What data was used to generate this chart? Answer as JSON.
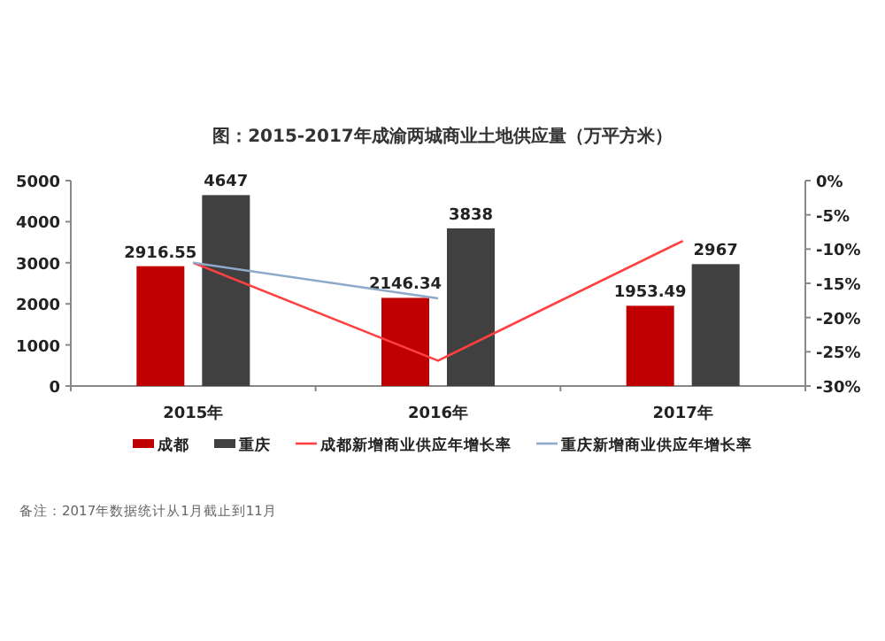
{
  "chart_data": {
    "type": "bar",
    "title": "图：2015-2017年成渝两城商业土地供应量（万平方米）",
    "categories": [
      "2015年",
      "2016年",
      "2017年"
    ],
    "series": [
      {
        "name": "成都",
        "color": "#c00000",
        "values": [
          2916.55,
          2146.34,
          1953.49
        ],
        "value_labels": [
          "2916.55",
          "2146.34",
          "1953.49"
        ]
      },
      {
        "name": "重庆",
        "color": "#404040",
        "values": [
          4647,
          3838,
          2967
        ],
        "value_labels": [
          "4647",
          "3838",
          "2967"
        ]
      },
      {
        "name": "成都新增商业供应年增长率",
        "type": "line",
        "axis": "y2",
        "color": "#ff4040",
        "values": [
          -12,
          -26.3,
          -8.8
        ]
      },
      {
        "name": "重庆新增商业供应年增长率",
        "type": "line",
        "axis": "y2",
        "color": "#8ea9c9",
        "values": [
          -12,
          -17.2,
          null
        ]
      }
    ],
    "ylim": [
      0,
      5000
    ],
    "yticks": [
      0,
      1000,
      2000,
      3000,
      4000,
      5000
    ],
    "y2lim": [
      -30,
      0
    ],
    "y2ticks": [
      {
        "value": 0,
        "label": "0%"
      },
      {
        "value": -5,
        "label": "-5%"
      },
      {
        "value": -10,
        "label": "-10%"
      },
      {
        "value": -15,
        "label": "-15%"
      },
      {
        "value": -20,
        "label": "-20%"
      },
      {
        "value": -25,
        "label": "-25%"
      },
      {
        "value": -30,
        "label": "-30%"
      }
    ],
    "legend": "bottom",
    "annotations": [
      "备注：2017年数据统计从1月截止到11月"
    ]
  }
}
